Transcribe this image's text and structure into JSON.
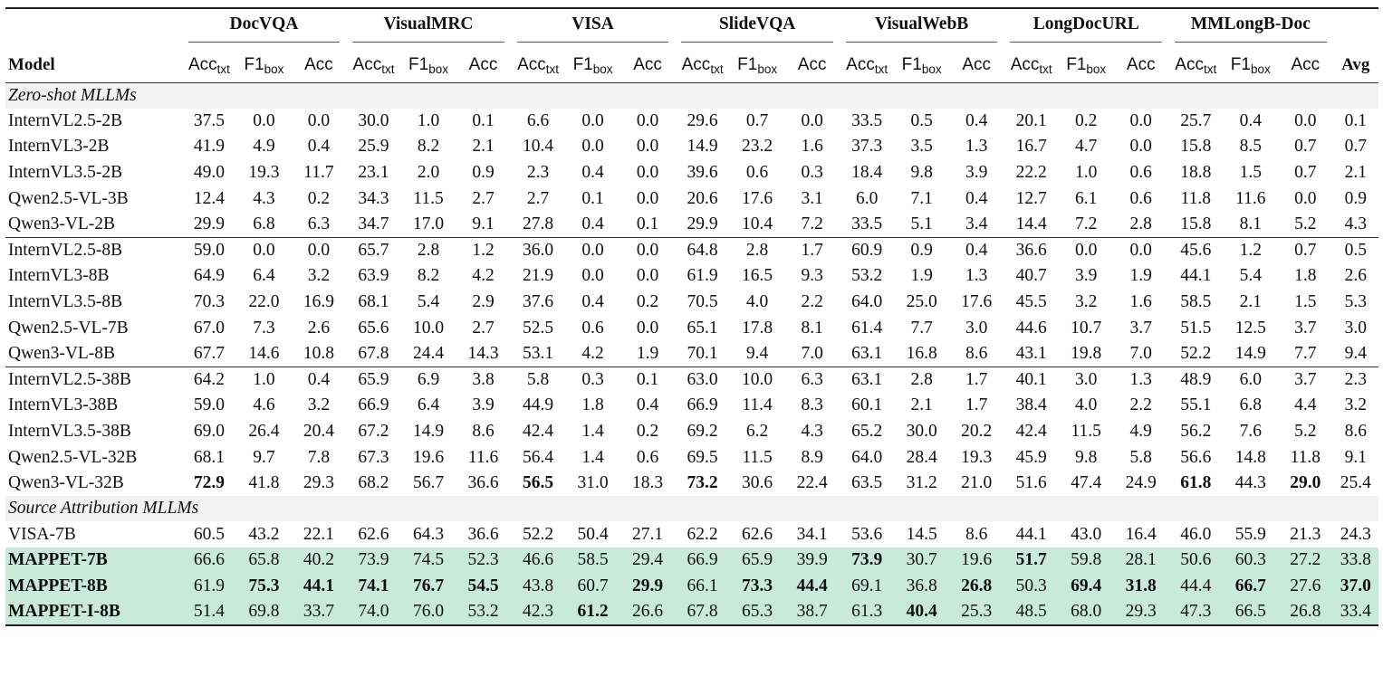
{
  "header": {
    "groups": [
      "DocVQA",
      "VisualMRC",
      "VISA",
      "SlideVQA",
      "VisualWebB",
      "LongDocURL",
      "MMLongB-Doc"
    ],
    "model_label": "Model",
    "avg_label": "Avg",
    "sub_cols": [
      {
        "base": "Acc",
        "sub": "txt"
      },
      {
        "base": "F1",
        "sub": "box"
      },
      {
        "base": "Acc",
        "sub": ""
      }
    ]
  },
  "sections": [
    {
      "title": "Zero-shot MLLMs",
      "groups": [
        [
          {
            "model": "InternVL2.5-2B",
            "values": [
              "37.5",
              "0.0",
              "0.0",
              "30.0",
              "1.0",
              "0.1",
              "6.6",
              "0.0",
              "0.0",
              "29.6",
              "0.7",
              "0.0",
              "33.5",
              "0.5",
              "0.4",
              "20.1",
              "0.2",
              "0.0",
              "25.7",
              "0.4",
              "0.0",
              "0.1"
            ],
            "bold": []
          },
          {
            "model": "InternVL3-2B",
            "values": [
              "41.9",
              "4.9",
              "0.4",
              "25.9",
              "8.2",
              "2.1",
              "10.4",
              "0.0",
              "0.0",
              "14.9",
              "23.2",
              "1.6",
              "37.3",
              "3.5",
              "1.3",
              "16.7",
              "4.7",
              "0.0",
              "15.8",
              "8.5",
              "0.7",
              "0.7"
            ],
            "bold": []
          },
          {
            "model": "InternVL3.5-2B",
            "values": [
              "49.0",
              "19.3",
              "11.7",
              "23.1",
              "2.0",
              "0.9",
              "2.3",
              "0.4",
              "0.0",
              "39.6",
              "0.6",
              "0.3",
              "18.4",
              "9.8",
              "3.9",
              "22.2",
              "1.0",
              "0.6",
              "18.8",
              "1.5",
              "0.7",
              "2.1"
            ],
            "bold": []
          },
          {
            "model": "Qwen2.5-VL-3B",
            "values": [
              "12.4",
              "4.3",
              "0.2",
              "34.3",
              "11.5",
              "2.7",
              "2.7",
              "0.1",
              "0.0",
              "20.6",
              "17.6",
              "3.1",
              "6.0",
              "7.1",
              "0.4",
              "12.7",
              "6.1",
              "0.6",
              "11.8",
              "11.6",
              "0.0",
              "0.9"
            ],
            "bold": []
          },
          {
            "model": "Qwen3-VL-2B",
            "values": [
              "29.9",
              "6.8",
              "6.3",
              "34.7",
              "17.0",
              "9.1",
              "27.8",
              "0.4",
              "0.1",
              "29.9",
              "10.4",
              "7.2",
              "33.5",
              "5.1",
              "3.4",
              "14.4",
              "7.2",
              "2.8",
              "15.8",
              "8.1",
              "5.2",
              "4.3"
            ],
            "bold": []
          }
        ],
        [
          {
            "model": "InternVL2.5-8B",
            "values": [
              "59.0",
              "0.0",
              "0.0",
              "65.7",
              "2.8",
              "1.2",
              "36.0",
              "0.0",
              "0.0",
              "64.8",
              "2.8",
              "1.7",
              "60.9",
              "0.9",
              "0.4",
              "36.6",
              "0.0",
              "0.0",
              "45.6",
              "1.2",
              "0.7",
              "0.5"
            ],
            "bold": []
          },
          {
            "model": "InternVL3-8B",
            "values": [
              "64.9",
              "6.4",
              "3.2",
              "63.9",
              "8.2",
              "4.2",
              "21.9",
              "0.0",
              "0.0",
              "61.9",
              "16.5",
              "9.3",
              "53.2",
              "1.9",
              "1.3",
              "40.7",
              "3.9",
              "1.9",
              "44.1",
              "5.4",
              "1.8",
              "2.6"
            ],
            "bold": []
          },
          {
            "model": "InternVL3.5-8B",
            "values": [
              "70.3",
              "22.0",
              "16.9",
              "68.1",
              "5.4",
              "2.9",
              "37.6",
              "0.4",
              "0.2",
              "70.5",
              "4.0",
              "2.2",
              "64.0",
              "25.0",
              "17.6",
              "45.5",
              "3.2",
              "1.6",
              "58.5",
              "2.1",
              "1.5",
              "5.3"
            ],
            "bold": []
          },
          {
            "model": "Qwen2.5-VL-7B",
            "values": [
              "67.0",
              "7.3",
              "2.6",
              "65.6",
              "10.0",
              "2.7",
              "52.5",
              "0.6",
              "0.0",
              "65.1",
              "17.8",
              "8.1",
              "61.4",
              "7.7",
              "3.0",
              "44.6",
              "10.7",
              "3.7",
              "51.5",
              "12.5",
              "3.7",
              "3.0"
            ],
            "bold": []
          },
          {
            "model": "Qwen3-VL-8B",
            "values": [
              "67.7",
              "14.6",
              "10.8",
              "67.8",
              "24.4",
              "14.3",
              "53.1",
              "4.2",
              "1.9",
              "70.1",
              "9.4",
              "7.0",
              "63.1",
              "16.8",
              "8.6",
              "43.1",
              "19.8",
              "7.0",
              "52.2",
              "14.9",
              "7.7",
              "9.4"
            ],
            "bold": []
          }
        ],
        [
          {
            "model": "InternVL2.5-38B",
            "values": [
              "64.2",
              "1.0",
              "0.4",
              "65.9",
              "6.9",
              "3.8",
              "5.8",
              "0.3",
              "0.1",
              "63.0",
              "10.0",
              "6.3",
              "63.1",
              "2.8",
              "1.7",
              "40.1",
              "3.0",
              "1.3",
              "48.9",
              "6.0",
              "3.7",
              "2.3"
            ],
            "bold": []
          },
          {
            "model": "InternVL3-38B",
            "values": [
              "59.0",
              "4.6",
              "3.2",
              "66.9",
              "6.4",
              "3.9",
              "44.9",
              "1.8",
              "0.4",
              "66.9",
              "11.4",
              "8.3",
              "60.1",
              "2.1",
              "1.7",
              "38.4",
              "4.0",
              "2.2",
              "55.1",
              "6.8",
              "4.4",
              "3.2"
            ],
            "bold": []
          },
          {
            "model": "InternVL3.5-38B",
            "values": [
              "69.0",
              "26.4",
              "20.4",
              "67.2",
              "14.9",
              "8.6",
              "42.4",
              "1.4",
              "0.2",
              "69.2",
              "6.2",
              "4.3",
              "65.2",
              "30.0",
              "20.2",
              "42.4",
              "11.5",
              "4.9",
              "56.2",
              "7.6",
              "5.2",
              "8.6"
            ],
            "bold": []
          },
          {
            "model": "Qwen2.5-VL-32B",
            "values": [
              "68.1",
              "9.7",
              "7.8",
              "67.3",
              "19.6",
              "11.6",
              "56.4",
              "1.4",
              "0.6",
              "69.5",
              "11.5",
              "8.9",
              "64.0",
              "28.4",
              "19.3",
              "45.9",
              "9.8",
              "5.8",
              "56.6",
              "14.8",
              "11.8",
              "9.1"
            ],
            "bold": []
          },
          {
            "model": "Qwen3-VL-32B",
            "values": [
              "72.9",
              "41.8",
              "29.3",
              "68.2",
              "56.7",
              "36.6",
              "56.5",
              "31.0",
              "18.3",
              "73.2",
              "30.6",
              "22.4",
              "63.5",
              "31.2",
              "21.0",
              "51.6",
              "47.4",
              "24.9",
              "61.8",
              "44.3",
              "29.0",
              "25.4"
            ],
            "bold": [
              0,
              6,
              9,
              18,
              20
            ]
          }
        ]
      ]
    },
    {
      "title": "Source Attribution MLLMs",
      "groups": [
        [
          {
            "model": "VISA-7B",
            "values": [
              "60.5",
              "43.2",
              "22.1",
              "62.6",
              "64.3",
              "36.6",
              "52.2",
              "50.4",
              "27.1",
              "62.2",
              "62.6",
              "34.1",
              "53.6",
              "14.5",
              "8.6",
              "44.1",
              "43.0",
              "16.4",
              "46.0",
              "55.9",
              "21.3",
              "24.3"
            ],
            "bold": []
          },
          {
            "model": "MAPPET-7B",
            "highlight": true,
            "values": [
              "66.6",
              "65.8",
              "40.2",
              "73.9",
              "74.5",
              "52.3",
              "46.6",
              "58.5",
              "29.4",
              "66.9",
              "65.9",
              "39.9",
              "73.9",
              "30.7",
              "19.6",
              "51.7",
              "59.8",
              "28.1",
              "50.6",
              "60.3",
              "27.2",
              "33.8"
            ],
            "bold": [
              12,
              15
            ]
          },
          {
            "model": "MAPPET-8B",
            "highlight": true,
            "values": [
              "61.9",
              "75.3",
              "44.1",
              "74.1",
              "76.7",
              "54.5",
              "43.8",
              "60.7",
              "29.9",
              "66.1",
              "73.3",
              "44.4",
              "69.1",
              "36.8",
              "26.8",
              "50.3",
              "69.4",
              "31.8",
              "44.4",
              "66.7",
              "27.6",
              "37.0"
            ],
            "bold": [
              1,
              2,
              3,
              4,
              5,
              8,
              10,
              11,
              14,
              16,
              17,
              19,
              21
            ]
          },
          {
            "model": "MAPPET-I-8B",
            "highlight": true,
            "values": [
              "51.4",
              "69.8",
              "33.7",
              "74.0",
              "76.0",
              "53.2",
              "42.3",
              "61.2",
              "26.6",
              "67.8",
              "65.3",
              "38.7",
              "61.3",
              "40.4",
              "25.3",
              "48.5",
              "68.0",
              "29.3",
              "47.3",
              "66.5",
              "26.8",
              "33.4"
            ],
            "bold": [
              7,
              13
            ]
          }
        ]
      ]
    }
  ]
}
